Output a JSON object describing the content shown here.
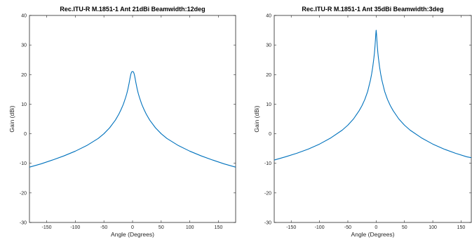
{
  "chart_data": [
    {
      "type": "line",
      "title": "Rec.ITU-R M.1851-1 Ant 21dBi Beamwidth:12deg",
      "xlabel": "Angle (Degrees)",
      "ylabel": "Gain (dBi)",
      "xlim": [
        -180,
        180
      ],
      "ylim": [
        -30,
        40
      ],
      "xticks": [
        -150,
        -100,
        -50,
        0,
        50,
        100,
        150
      ],
      "yticks": [
        -30,
        -20,
        -10,
        0,
        10,
        20,
        30,
        40
      ],
      "grid": false,
      "color": "#0072bd",
      "x": [
        -180,
        -160,
        -140,
        -120,
        -100,
        -80,
        -60,
        -50,
        -40,
        -30,
        -24,
        -20,
        -16,
        -12,
        -10,
        -8,
        -6,
        -4,
        -3,
        -2,
        -1,
        0,
        1,
        2,
        3,
        4,
        6,
        8,
        10,
        12,
        16,
        20,
        24,
        30,
        40,
        50,
        60,
        80,
        100,
        120,
        140,
        160,
        180
      ],
      "y": [
        -11.3,
        -10.2,
        -8.9,
        -7.5,
        -5.9,
        -4.0,
        -1.6,
        0.0,
        2.0,
        4.6,
        6.6,
        8.2,
        10.0,
        12.3,
        13.6,
        15.2,
        17.1,
        19.2,
        20.1,
        20.7,
        21.0,
        21.0,
        21.0,
        20.7,
        20.1,
        19.2,
        17.1,
        15.2,
        13.6,
        12.3,
        10.0,
        8.2,
        6.6,
        4.6,
        2.0,
        0.0,
        -1.6,
        -4.0,
        -5.9,
        -7.5,
        -8.9,
        -10.2,
        -11.3
      ]
    },
    {
      "type": "line",
      "title": "Rec.ITU-R M.1851-1 Ant 35dBi Beamwidth:3deg",
      "xlabel": "Angle (Degrees)",
      "ylabel": "Gain (dBi)",
      "xlim": [
        -180,
        168
      ],
      "ylim": [
        -30,
        40
      ],
      "xticks": [
        -150,
        -100,
        -50,
        0,
        50,
        100,
        150
      ],
      "yticks": [
        -30,
        -20,
        -10,
        0,
        10,
        20,
        30,
        40
      ],
      "grid": false,
      "color": "#0072bd",
      "x": [
        -180,
        -160,
        -140,
        -120,
        -100,
        -80,
        -60,
        -50,
        -40,
        -30,
        -25,
        -20,
        -15,
        -10,
        -8,
        -6,
        -4,
        -3,
        -2,
        -1.5,
        -1,
        -0.5,
        0,
        0.5,
        1,
        1.5,
        2,
        3,
        4,
        6,
        8,
        10,
        15,
        20,
        25,
        30,
        40,
        50,
        60,
        80,
        100,
        120,
        140,
        160,
        168
      ],
      "y": [
        -8.9,
        -7.8,
        -6.6,
        -5.2,
        -3.5,
        -1.4,
        1.2,
        2.9,
        5.0,
        7.8,
        9.5,
        11.6,
        14.3,
        18.2,
        20.2,
        22.6,
        25.6,
        27.4,
        29.7,
        31.1,
        32.6,
        34.0,
        35.0,
        34.0,
        32.6,
        31.1,
        29.7,
        27.4,
        25.6,
        22.6,
        20.2,
        18.2,
        14.3,
        11.6,
        9.5,
        7.8,
        5.0,
        2.9,
        1.2,
        -1.4,
        -3.5,
        -5.2,
        -6.6,
        -7.8,
        -8.1
      ]
    }
  ]
}
